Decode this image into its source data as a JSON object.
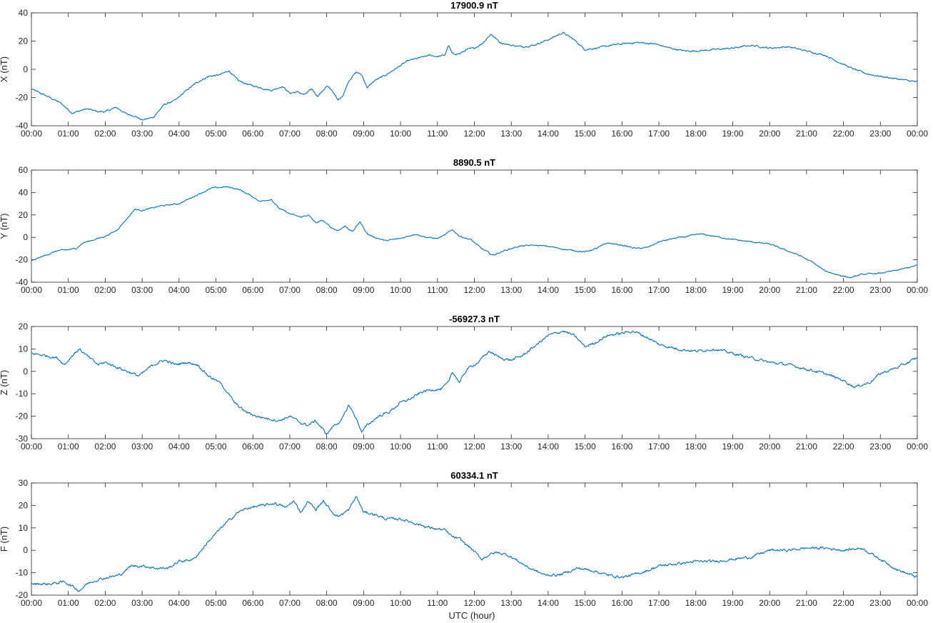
{
  "xlabel": "UTC (hour)",
  "x_ticks": [
    "00:00",
    "01:00",
    "02:00",
    "03:00",
    "04:00",
    "05:00",
    "06:00",
    "07:00",
    "08:00",
    "09:00",
    "10:00",
    "11:00",
    "12:00",
    "13:00",
    "14:00",
    "15:00",
    "16:00",
    "17:00",
    "18:00",
    "19:00",
    "20:00",
    "21:00",
    "22:00",
    "23:00",
    "00:00"
  ],
  "line_color": "#0072BD",
  "chart_data": [
    {
      "type": "line",
      "title": "17900.9 nT",
      "ylabel": "X (nT)",
      "xlim": [
        0,
        24
      ],
      "ylim": [
        -40,
        40
      ],
      "yticks": [
        -40,
        -20,
        0,
        20,
        40
      ],
      "x": [
        0,
        0.5,
        0.8,
        1.1,
        1.5,
        1.8,
        2.0,
        2.3,
        2.6,
        2.8,
        3.0,
        3.3,
        3.6,
        3.9,
        4.2,
        4.5,
        4.8,
        5.1,
        5.35,
        5.6,
        5.9,
        6.2,
        6.5,
        6.8,
        7.0,
        7.2,
        7.4,
        7.6,
        7.75,
        7.9,
        8.0,
        8.15,
        8.3,
        8.45,
        8.6,
        8.8,
        8.95,
        9.1,
        9.3,
        9.6,
        9.9,
        10.2,
        10.5,
        10.8,
        11.0,
        11.2,
        11.3,
        11.4,
        11.6,
        11.8,
        12.0,
        12.2,
        12.45,
        12.7,
        13.0,
        13.3,
        13.6,
        14.0,
        14.4,
        14.7,
        15.0,
        15.3,
        15.7,
        16.0,
        16.4,
        16.9,
        17.3,
        17.7,
        18.0,
        18.5,
        19.0,
        19.5,
        20.0,
        20.5,
        21.0,
        21.5,
        21.8,
        22.2,
        22.6,
        23.0,
        23.5,
        24.0
      ],
      "values": [
        -14,
        -20,
        -24,
        -31,
        -28,
        -30,
        -30,
        -27,
        -32,
        -33,
        -36,
        -34,
        -25,
        -22,
        -15,
        -9,
        -5,
        -4,
        -1,
        -8,
        -11,
        -13,
        -15,
        -12,
        -17,
        -16,
        -18,
        -14,
        -19,
        -15,
        -12,
        -15,
        -22,
        -18,
        -8,
        -2,
        -4,
        -13,
        -8,
        -4,
        1,
        6,
        8,
        10,
        9,
        10,
        17,
        11,
        11,
        14,
        15,
        18,
        25,
        19,
        17,
        16,
        17,
        21,
        26,
        21,
        14,
        15,
        17,
        18,
        19,
        18,
        15,
        13,
        13,
        14,
        15,
        17,
        15,
        16,
        13,
        10,
        6,
        1,
        -3,
        -5,
        -7,
        -9
      ]
    },
    {
      "type": "line",
      "title": "8890.5 nT",
      "ylabel": "Y (nT)",
      "xlim": [
        0,
        24
      ],
      "ylim": [
        -40,
        60
      ],
      "yticks": [
        -40,
        -20,
        0,
        20,
        40,
        60
      ],
      "x": [
        0,
        0.3,
        0.7,
        1.0,
        1.2,
        1.4,
        1.7,
        2.0,
        2.3,
        2.6,
        2.8,
        3.0,
        3.5,
        4.0,
        4.5,
        4.9,
        5.3,
        5.6,
        5.9,
        6.2,
        6.5,
        6.7,
        7.0,
        7.3,
        7.5,
        7.7,
        7.9,
        8.1,
        8.3,
        8.5,
        8.7,
        8.9,
        9.1,
        9.3,
        9.6,
        10.0,
        10.4,
        10.7,
        11.0,
        11.2,
        11.4,
        11.6,
        11.9,
        12.2,
        12.5,
        12.8,
        13.2,
        13.6,
        14.0,
        14.5,
        15.0,
        15.3,
        15.6,
        16.0,
        16.4,
        16.7,
        17.0,
        17.4,
        17.8,
        18.1,
        18.5,
        19.0,
        19.5,
        20.0,
        20.4,
        20.8,
        21.2,
        21.5,
        21.8,
        22.2,
        22.5,
        23.0,
        23.5,
        24.0
      ],
      "values": [
        -21,
        -17,
        -12,
        -11,
        -10,
        -5,
        -2,
        1,
        6,
        17,
        25,
        24,
        28,
        30,
        38,
        44,
        45,
        43,
        38,
        32,
        34,
        26,
        21,
        18,
        20,
        13,
        15,
        9,
        6,
        10,
        5,
        14,
        3,
        0,
        -3,
        -1,
        3,
        0,
        -1,
        2,
        7,
        1,
        -2,
        -10,
        -16,
        -12,
        -8,
        -7,
        -8,
        -11,
        -13,
        -10,
        -5,
        -7,
        -10,
        -9,
        -4,
        -1,
        1,
        3,
        1,
        -2,
        -4,
        -6,
        -11,
        -16,
        -23,
        -30,
        -33,
        -36,
        -33,
        -32,
        -29,
        -25
      ]
    },
    {
      "type": "line",
      "title": "-56927.3 nT",
      "ylabel": "Z (nT)",
      "xlim": [
        0,
        24
      ],
      "ylim": [
        -30,
        20
      ],
      "yticks": [
        -30,
        -20,
        -10,
        0,
        10,
        20
      ],
      "x": [
        0,
        0.4,
        0.7,
        0.9,
        1.1,
        1.3,
        1.5,
        1.8,
        2.0,
        2.3,
        2.6,
        2.9,
        3.0,
        3.3,
        3.6,
        3.9,
        4.2,
        4.5,
        4.8,
        5.1,
        5.3,
        5.5,
        5.8,
        6.1,
        6.4,
        6.7,
        7.0,
        7.3,
        7.5,
        7.7,
        7.9,
        8.0,
        8.2,
        8.4,
        8.6,
        8.8,
        8.95,
        9.1,
        9.4,
        9.7,
        10.0,
        10.3,
        10.6,
        10.9,
        11.1,
        11.3,
        11.4,
        11.6,
        11.8,
        12.1,
        12.4,
        12.7,
        13.0,
        13.3,
        13.7,
        14.0,
        14.4,
        14.7,
        15.0,
        15.3,
        15.6,
        16.0,
        16.3,
        16.7,
        17.0,
        17.5,
        18.0,
        18.5,
        19.0,
        19.5,
        20.0,
        20.5,
        21.0,
        21.5,
        22.0,
        22.3,
        22.7,
        23.0,
        23.5,
        24.0
      ],
      "values": [
        8,
        7,
        6,
        3,
        7,
        10,
        7,
        3,
        4,
        2,
        0,
        -2,
        -1,
        3,
        5,
        3,
        4,
        3,
        -2,
        -5,
        -9,
        -14,
        -18,
        -20,
        -21,
        -22,
        -20,
        -23,
        -24,
        -22,
        -26,
        -28,
        -24,
        -22,
        -15,
        -21,
        -27,
        -24,
        -20,
        -18,
        -14,
        -12,
        -9,
        -8,
        -8,
        -5,
        0,
        -5,
        1,
        4,
        9,
        6,
        5,
        7,
        12,
        16,
        18,
        16,
        11,
        13,
        16,
        17,
        18,
        15,
        12,
        10,
        9,
        10,
        8,
        6,
        4,
        3,
        1,
        -1,
        -4,
        -7,
        -5,
        -1,
        2,
        6
      ]
    },
    {
      "type": "line",
      "title": "60334.1 nT",
      "ylabel": "F (nT)",
      "xlim": [
        0,
        24
      ],
      "ylim": [
        -20,
        30
      ],
      "yticks": [
        -20,
        -10,
        0,
        10,
        20,
        30
      ],
      "x": [
        0,
        0.5,
        0.9,
        1.1,
        1.3,
        1.5,
        1.8,
        2.1,
        2.4,
        2.7,
        3.0,
        3.4,
        3.7,
        4.0,
        4.4,
        4.8,
        5.2,
        5.6,
        5.9,
        6.3,
        6.6,
        6.9,
        7.1,
        7.3,
        7.5,
        7.7,
        7.9,
        8.1,
        8.3,
        8.6,
        8.8,
        9.0,
        9.3,
        9.6,
        10.0,
        10.4,
        10.8,
        11.2,
        11.4,
        11.6,
        11.9,
        12.2,
        12.4,
        12.6,
        12.9,
        13.2,
        13.5,
        13.9,
        14.3,
        14.8,
        15.2,
        15.6,
        16.0,
        16.3,
        16.7,
        17.0,
        17.5,
        18.0,
        18.5,
        19.0,
        19.5,
        20.0,
        20.5,
        21.0,
        21.5,
        22.0,
        22.5,
        23.0,
        23.5,
        24.0
      ],
      "values": [
        -15,
        -15,
        -14,
        -16,
        -18,
        -15,
        -13,
        -12,
        -11,
        -7,
        -7,
        -8,
        -8,
        -5,
        -4,
        4,
        11,
        17,
        19,
        20,
        21,
        19,
        22,
        17,
        22,
        18,
        22,
        18,
        15,
        18,
        24,
        17,
        16,
        14,
        14,
        12,
        10,
        9,
        6,
        5,
        1,
        -4,
        -2,
        -1,
        -2,
        -5,
        -8,
        -11,
        -11,
        -8,
        -9,
        -11,
        -12,
        -11,
        -9,
        -7,
        -6,
        -5,
        -5,
        -4,
        -3,
        0,
        0,
        1,
        1,
        0,
        1,
        -4,
        -9,
        -12
      ]
    }
  ]
}
